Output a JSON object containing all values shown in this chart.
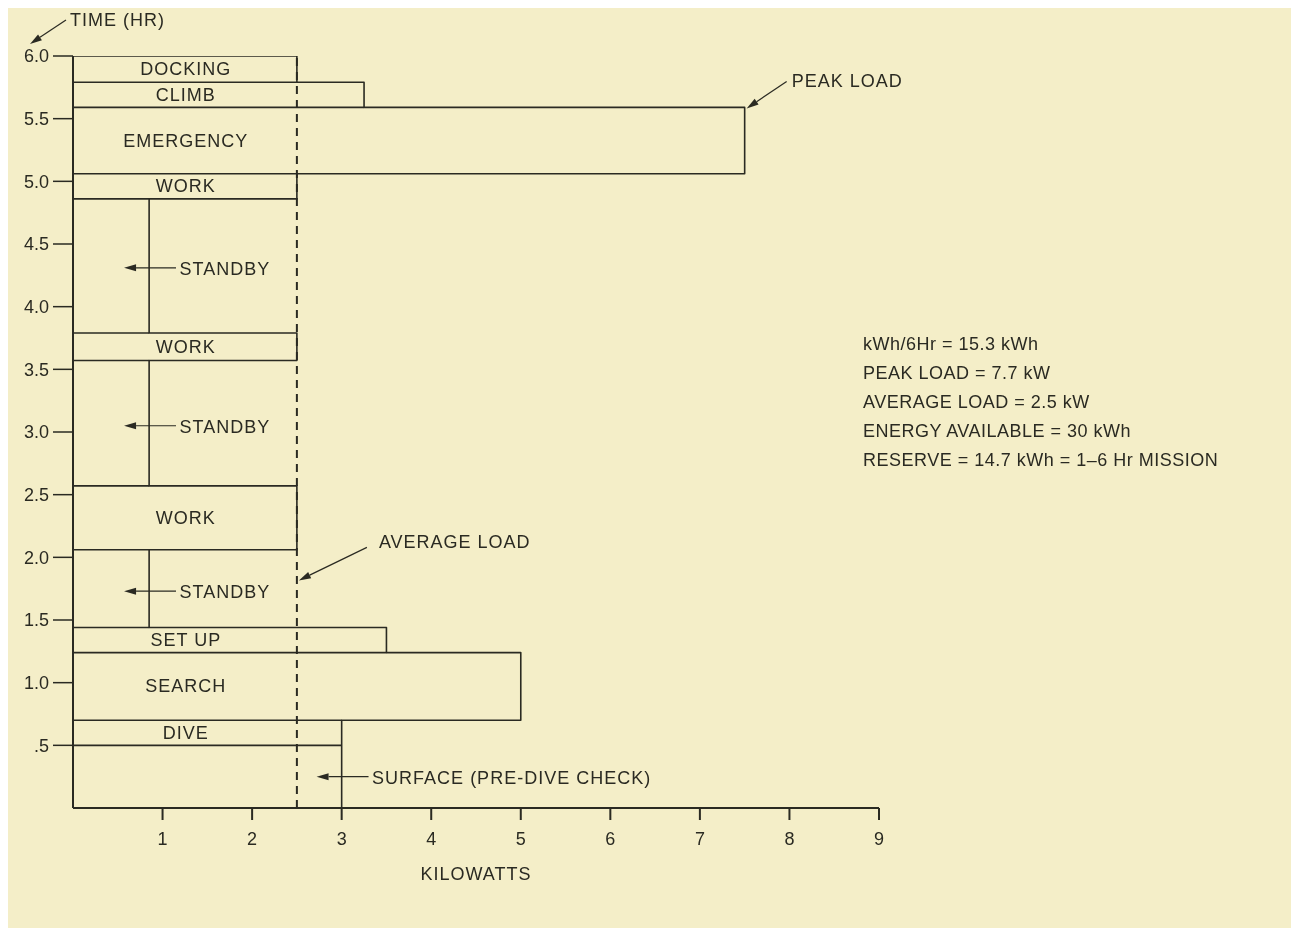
{
  "chart_data": {
    "type": "line",
    "xlabel": "KILOWATTS",
    "ylabel": "TIME (HR)",
    "marker": "none",
    "line_style": "solid",
    "series": [
      {
        "color": "#2a2a22",
        "x": [
          0,
          3,
          3,
          5,
          5,
          3.5,
          3.5,
          0.85,
          0.85,
          2.5,
          2.5,
          0.85,
          0.85,
          2.5,
          2.5,
          0.85,
          0.85,
          2.5,
          2.5,
          7.5,
          7.5,
          3.25,
          3.25,
          2.5,
          2.5,
          0
        ],
        "values": [
          0,
          0,
          0.7,
          0.7,
          1.24,
          1.24,
          1.44,
          1.44,
          2.06,
          2.06,
          2.57,
          2.57,
          3.57,
          3.57,
          3.79,
          3.79,
          4.86,
          4.86,
          5.06,
          5.06,
          5.59,
          5.59,
          5.79,
          5.79,
          6,
          6
        ]
      },
      {
        "color": "#2a2a22",
        "x": [
          0,
          3
        ],
        "values": [
          0.5,
          0.5
        ]
      },
      {
        "color": "#2a2a22",
        "x": [
          0,
          3
        ],
        "values": [
          0.7,
          0.7
        ]
      },
      {
        "color": "#2a2a22",
        "x": [
          0,
          3.5
        ],
        "values": [
          1.24,
          1.24
        ]
      },
      {
        "color": "#2a2a22",
        "x": [
          0,
          0.85
        ],
        "values": [
          1.44,
          1.44
        ]
      },
      {
        "color": "#2a2a22",
        "x": [
          0,
          0.85
        ],
        "values": [
          2.06,
          2.06
        ]
      },
      {
        "color": "#2a2a22",
        "x": [
          0,
          0.85
        ],
        "values": [
          2.57,
          2.57
        ]
      },
      {
        "color": "#2a2a22",
        "x": [
          0,
          0.85
        ],
        "values": [
          3.57,
          3.57
        ]
      },
      {
        "color": "#2a2a22",
        "x": [
          0,
          0.85
        ],
        "values": [
          3.79,
          3.79
        ]
      },
      {
        "color": "#2a2a22",
        "x": [
          0,
          0.85
        ],
        "values": [
          4.86,
          4.86
        ]
      },
      {
        "color": "#2a2a22",
        "x": [
          0,
          2.5
        ],
        "values": [
          5.06,
          5.06
        ]
      },
      {
        "color": "#2a2a22",
        "x": [
          0,
          3.25
        ],
        "values": [
          5.59,
          5.59
        ]
      },
      {
        "color": "#2a2a22",
        "x": [
          0,
          2.5
        ],
        "values": [
          5.79,
          5.79
        ]
      }
    ],
    "xlim": [
      0,
      9
    ],
    "xticks": [
      1,
      2,
      3,
      4,
      5,
      6,
      7,
      8,
      9
    ],
    "ylim": [
      0,
      6
    ],
    "yticks": [
      {
        "value": 0.5,
        "label": ".5"
      },
      {
        "value": 1,
        "label": "1.0"
      },
      {
        "value": 1.5,
        "label": "1.5"
      },
      {
        "value": 2,
        "label": "2.0"
      },
      {
        "value": 2.5,
        "label": "2.5"
      },
      {
        "value": 3,
        "label": "3.0"
      },
      {
        "value": 3.5,
        "label": "3.5"
      },
      {
        "value": 4,
        "label": "4.0"
      },
      {
        "value": 4.5,
        "label": "4.5"
      },
      {
        "value": 5,
        "label": "5.0"
      },
      {
        "value": 5.5,
        "label": "5.5"
      },
      {
        "value": 6,
        "label": "6.0"
      }
    ],
    "ref_lines": [
      {
        "axis": "x",
        "value": 2.5,
        "label": "AVERAGE LOAD",
        "line_style": "dashed"
      }
    ],
    "annotations": [
      "DOCKING",
      "CLIMB",
      "EMERGENCY",
      "WORK",
      {
        "text": "STANDBY",
        "x": 0.85,
        "y": 4.31
      },
      "WORK",
      {
        "text": "STANDBY",
        "x": 0.85,
        "y": 3.05
      },
      "WORK",
      {
        "text": "STANDBY",
        "x": 0.85,
        "y": 1.73
      },
      "SET UP",
      "SEARCH",
      "DIVE",
      {
        "text": "SURFACE (PRE-DIVE CHECK)",
        "x": 3,
        "y": 0.25
      },
      {
        "text": "PEAK LOAD",
        "x": 7.5,
        "y": 5.59
      },
      "kWh/6Hr = 15.3 kWh",
      "PEAK LOAD = 7.7 kW",
      "AVERAGE LOAD = 2.5 kW",
      "ENERGY AVAILABLE = 30 kWh",
      "RESERVE = 14.7 kWh = 1–6 Hr MISSION"
    ]
  }
}
